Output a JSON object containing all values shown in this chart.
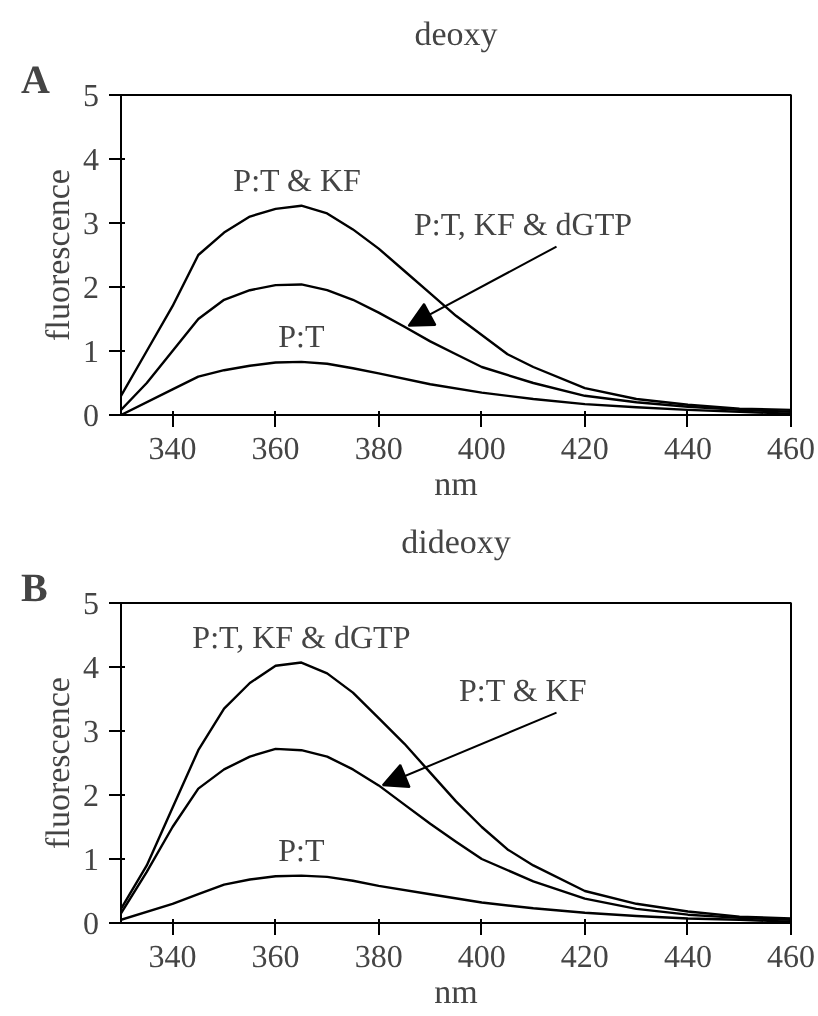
{
  "chart_data": [
    {
      "type": "line",
      "title": "deoxy",
      "xlabel": "nm",
      "ylabel": "fluorescence",
      "annotations": [
        "A"
      ],
      "xlim": [
        330,
        460
      ],
      "ylim": [
        0,
        5
      ],
      "xticks": [
        340,
        360,
        380,
        400,
        420,
        440,
        460
      ],
      "yticks": [
        0,
        1,
        2,
        3,
        4,
        5
      ],
      "grid": false,
      "legend": false,
      "marker": "none",
      "line_style": "solid",
      "series": [
        {
          "name": "P:T &  KF",
          "color": "#000000",
          "x": [
            330,
            335,
            340,
            345,
            350,
            355,
            360,
            365,
            370,
            375,
            380,
            385,
            390,
            395,
            400,
            405,
            410,
            420,
            430,
            440,
            450,
            460
          ],
          "values": [
            0.3,
            1.0,
            1.7,
            2.5,
            2.85,
            3.1,
            3.22,
            3.27,
            3.15,
            2.9,
            2.6,
            2.25,
            1.9,
            1.55,
            1.25,
            0.95,
            0.75,
            0.42,
            0.25,
            0.16,
            0.1,
            0.08
          ]
        },
        {
          "name": "P:T, KF & dGTP",
          "color": "#000000",
          "x": [
            330,
            335,
            340,
            345,
            350,
            355,
            360,
            365,
            370,
            375,
            380,
            385,
            390,
            395,
            400,
            410,
            420,
            430,
            440,
            450,
            460
          ],
          "values": [
            0.08,
            0.5,
            1.0,
            1.5,
            1.8,
            1.95,
            2.03,
            2.04,
            1.95,
            1.8,
            1.6,
            1.38,
            1.15,
            0.95,
            0.75,
            0.5,
            0.3,
            0.2,
            0.13,
            0.08,
            0.05
          ]
        },
        {
          "name": "P:T",
          "color": "#000000",
          "x": [
            330,
            340,
            345,
            350,
            355,
            360,
            365,
            370,
            375,
            380,
            390,
            400,
            410,
            420,
            430,
            440,
            450,
            460
          ],
          "values": [
            0.0,
            0.4,
            0.6,
            0.7,
            0.77,
            0.82,
            0.83,
            0.8,
            0.73,
            0.65,
            0.48,
            0.35,
            0.25,
            0.17,
            0.12,
            0.08,
            0.05,
            0.02
          ]
        }
      ]
    },
    {
      "type": "line",
      "title": "dideoxy",
      "xlabel": "nm",
      "ylabel": "fluorescence",
      "annotations": [
        "B"
      ],
      "xlim": [
        330,
        460
      ],
      "ylim": [
        0,
        5
      ],
      "xticks": [
        340,
        360,
        380,
        400,
        420,
        440,
        460
      ],
      "yticks": [
        0,
        1,
        2,
        3,
        4,
        5
      ],
      "grid": false,
      "legend": false,
      "marker": "none",
      "line_style": "solid",
      "series": [
        {
          "name": "P:T, KF & dGTP",
          "color": "#000000",
          "x": [
            330,
            335,
            340,
            345,
            350,
            355,
            360,
            365,
            370,
            375,
            380,
            385,
            390,
            395,
            400,
            405,
            410,
            420,
            430,
            440,
            450,
            460
          ],
          "values": [
            0.22,
            0.9,
            1.8,
            2.7,
            3.35,
            3.75,
            4.02,
            4.07,
            3.9,
            3.6,
            3.2,
            2.8,
            2.35,
            1.9,
            1.5,
            1.15,
            0.9,
            0.5,
            0.3,
            0.18,
            0.1,
            0.07
          ]
        },
        {
          "name": "P:T & KF",
          "color": "#000000",
          "x": [
            330,
            335,
            340,
            345,
            350,
            355,
            360,
            365,
            370,
            375,
            380,
            385,
            390,
            395,
            400,
            410,
            420,
            430,
            440,
            450,
            460
          ],
          "values": [
            0.15,
            0.8,
            1.5,
            2.1,
            2.4,
            2.6,
            2.72,
            2.7,
            2.6,
            2.4,
            2.15,
            1.85,
            1.55,
            1.27,
            1.0,
            0.65,
            0.38,
            0.22,
            0.13,
            0.08,
            0.05
          ]
        },
        {
          "name": "P:T",
          "color": "#000000",
          "x": [
            330,
            340,
            345,
            350,
            355,
            360,
            365,
            370,
            375,
            380,
            390,
            400,
            410,
            420,
            430,
            440,
            450,
            460
          ],
          "values": [
            0.05,
            0.3,
            0.45,
            0.6,
            0.68,
            0.73,
            0.74,
            0.72,
            0.66,
            0.58,
            0.45,
            0.32,
            0.23,
            0.16,
            0.11,
            0.07,
            0.05,
            0.02
          ]
        }
      ]
    }
  ]
}
